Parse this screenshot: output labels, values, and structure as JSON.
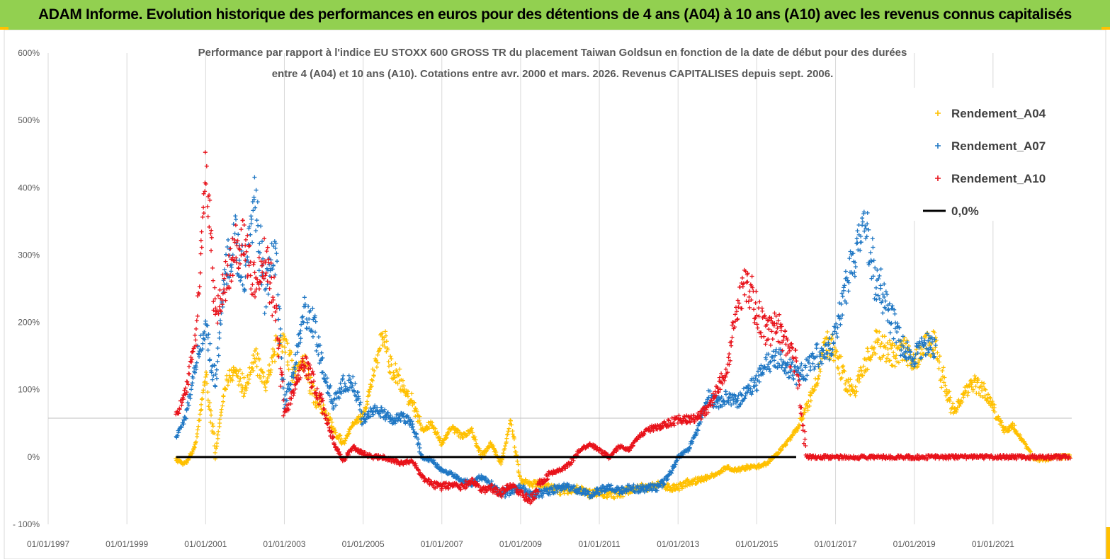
{
  "banner": {
    "title": "ADAM Informe. Evolution historique des performances en euros pour des détentions de 4 ans (A04) à 10 ans (A10) avec les revenus connus capitalisés",
    "background": "#92D050"
  },
  "chart_data": {
    "type": "scatter",
    "title_line1": "Performance par rapport à l'indice EU STOXX 600 GROSS TR  du placement Taiwan Goldsun  en fonction de la date de début pour des durées",
    "title_line2": "entre 4 (A04) et 10 ans (A10). Cotations entre avr. 2000 et mars. 2026. Revenus CAPITALISES depuis sept. 2006.",
    "xlabel": "",
    "ylabel": "",
    "xlim": [
      "1997-01-01",
      "2023-01-01"
    ],
    "ylim": [
      -100,
      600
    ],
    "y_ticks": [
      "- 100%",
      "0%",
      "100%",
      "200%",
      "300%",
      "400%",
      "500%",
      "600%"
    ],
    "x_ticks": [
      "01/01/1997",
      "01/01/1999",
      "01/01/2001",
      "01/01/2003",
      "01/01/2005",
      "01/01/2007",
      "01/01/2009",
      "01/01/2011",
      "01/01/2013",
      "01/01/2015",
      "01/01/2017",
      "01/01/2019",
      "01/01/2021"
    ],
    "grid": "vertical",
    "legend_position": "top-right",
    "series": [
      {
        "name": "Rendement_A04",
        "color": "#FFC000",
        "marker": "plus",
        "points": [
          [
            "2000-04",
            -5
          ],
          [
            "2000-07",
            -10
          ],
          [
            "2000-10",
            20
          ],
          [
            "2001-01",
            120
          ],
          [
            "2001-04",
            5
          ],
          [
            "2001-07",
            110
          ],
          [
            "2001-10",
            130
          ],
          [
            "2002-01",
            100
          ],
          [
            "2002-04",
            150
          ],
          [
            "2002-07",
            100
          ],
          [
            "2002-10",
            160
          ],
          [
            "2003-01",
            170
          ],
          [
            "2003-04",
            120
          ],
          [
            "2003-07",
            140
          ],
          [
            "2003-10",
            90
          ],
          [
            "2004-01",
            70
          ],
          [
            "2004-04",
            40
          ],
          [
            "2004-07",
            20
          ],
          [
            "2004-10",
            50
          ],
          [
            "2005-01",
            60
          ],
          [
            "2005-04",
            120
          ],
          [
            "2005-07",
            180
          ],
          [
            "2005-10",
            130
          ],
          [
            "2006-01",
            110
          ],
          [
            "2006-04",
            80
          ],
          [
            "2006-07",
            40
          ],
          [
            "2006-10",
            50
          ],
          [
            "2007-01",
            20
          ],
          [
            "2007-04",
            45
          ],
          [
            "2007-07",
            30
          ],
          [
            "2007-10",
            40
          ],
          [
            "2008-01",
            0
          ],
          [
            "2008-04",
            20
          ],
          [
            "2008-07",
            -10
          ],
          [
            "2008-10",
            55
          ],
          [
            "2009-01",
            -35
          ],
          [
            "2009-04",
            -40
          ],
          [
            "2009-07",
            -40
          ],
          [
            "2009-10",
            -45
          ],
          [
            "2010-01",
            -50
          ],
          [
            "2010-04",
            -48
          ],
          [
            "2010-07",
            -48
          ],
          [
            "2010-10",
            -55
          ],
          [
            "2011-01",
            -52
          ],
          [
            "2011-04",
            -55
          ],
          [
            "2011-07",
            -55
          ],
          [
            "2011-10",
            -50
          ],
          [
            "2012-01",
            -45
          ],
          [
            "2012-04",
            -45
          ],
          [
            "2012-07",
            -40
          ],
          [
            "2012-10",
            -45
          ],
          [
            "2013-01",
            -45
          ],
          [
            "2013-04",
            -38
          ],
          [
            "2013-07",
            -35
          ],
          [
            "2013-10",
            -30
          ],
          [
            "2014-01",
            -25
          ],
          [
            "2014-04",
            -15
          ],
          [
            "2014-07",
            -20
          ],
          [
            "2014-10",
            -15
          ],
          [
            "2015-01",
            -15
          ],
          [
            "2015-04",
            -10
          ],
          [
            "2015-07",
            5
          ],
          [
            "2015-10",
            20
          ],
          [
            "2016-01",
            40
          ],
          [
            "2016-04",
            70
          ],
          [
            "2016-07",
            110
          ],
          [
            "2016-10",
            170
          ],
          [
            "2017-01",
            160
          ],
          [
            "2017-04",
            110
          ],
          [
            "2017-07",
            100
          ],
          [
            "2017-10",
            140
          ],
          [
            "2018-01",
            170
          ],
          [
            "2018-04",
            160
          ],
          [
            "2018-07",
            150
          ],
          [
            "2018-10",
            160
          ],
          [
            "2019-01",
            140
          ],
          [
            "2019-04",
            165
          ],
          [
            "2019-07",
            170
          ],
          [
            "2019-10",
            110
          ],
          [
            "2020-01",
            65
          ],
          [
            "2020-04",
            90
          ],
          [
            "2020-07",
            110
          ],
          [
            "2020-10",
            100
          ],
          [
            "2021-01",
            75
          ],
          [
            "2021-04",
            40
          ],
          [
            "2021-07",
            45
          ],
          [
            "2021-10",
            25
          ],
          [
            "2022-01",
            0
          ],
          [
            "2022-04",
            -5
          ],
          [
            "2022-07",
            0
          ],
          [
            "2022-10",
            0
          ],
          [
            "2022-12",
            0
          ]
        ]
      },
      {
        "name": "Rendement_A07",
        "color": "#1F77C4",
        "marker": "plus",
        "points": [
          [
            "2000-04",
            30
          ],
          [
            "2000-07",
            60
          ],
          [
            "2000-10",
            140
          ],
          [
            "2001-01",
            190
          ],
          [
            "2001-04",
            110
          ],
          [
            "2001-07",
            280
          ],
          [
            "2001-10",
            320
          ],
          [
            "2002-01",
            260
          ],
          [
            "2002-04",
            380
          ],
          [
            "2002-07",
            240
          ],
          [
            "2002-10",
            320
          ],
          [
            "2003-01",
            80
          ],
          [
            "2003-04",
            130
          ],
          [
            "2003-07",
            220
          ],
          [
            "2003-10",
            200
          ],
          [
            "2004-01",
            130
          ],
          [
            "2004-04",
            80
          ],
          [
            "2004-07",
            110
          ],
          [
            "2004-10",
            110
          ],
          [
            "2005-01",
            55
          ],
          [
            "2005-04",
            70
          ],
          [
            "2005-07",
            65
          ],
          [
            "2005-10",
            55
          ],
          [
            "2006-01",
            60
          ],
          [
            "2006-04",
            50
          ],
          [
            "2006-07",
            0
          ],
          [
            "2006-10",
            -5
          ],
          [
            "2007-01",
            -20
          ],
          [
            "2007-04",
            -25
          ],
          [
            "2007-07",
            -35
          ],
          [
            "2007-10",
            -40
          ],
          [
            "2008-01",
            -30
          ],
          [
            "2008-04",
            -40
          ],
          [
            "2008-07",
            -55
          ],
          [
            "2008-10",
            -50
          ],
          [
            "2009-01",
            -45
          ],
          [
            "2009-04",
            -55
          ],
          [
            "2009-07",
            -55
          ],
          [
            "2009-10",
            -50
          ],
          [
            "2010-01",
            -45
          ],
          [
            "2010-04",
            -45
          ],
          [
            "2010-07",
            -50
          ],
          [
            "2010-10",
            -55
          ],
          [
            "2011-01",
            -50
          ],
          [
            "2011-04",
            -45
          ],
          [
            "2011-07",
            -50
          ],
          [
            "2011-10",
            -45
          ],
          [
            "2012-01",
            -48
          ],
          [
            "2012-04",
            -45
          ],
          [
            "2012-07",
            -45
          ],
          [
            "2012-10",
            -30
          ],
          [
            "2013-01",
            0
          ],
          [
            "2013-04",
            10
          ],
          [
            "2013-07",
            40
          ],
          [
            "2013-10",
            90
          ],
          [
            "2014-01",
            80
          ],
          [
            "2014-04",
            90
          ],
          [
            "2014-07",
            80
          ],
          [
            "2014-10",
            100
          ],
          [
            "2015-01",
            110
          ],
          [
            "2015-04",
            140
          ],
          [
            "2015-07",
            150
          ],
          [
            "2015-10",
            140
          ],
          [
            "2016-01",
            120
          ],
          [
            "2016-04",
            130
          ],
          [
            "2016-07",
            150
          ],
          [
            "2016-10",
            150
          ],
          [
            "2017-01",
            180
          ],
          [
            "2017-04",
            250
          ],
          [
            "2017-07",
            300
          ],
          [
            "2017-10",
            350
          ],
          [
            "2018-01",
            270
          ],
          [
            "2018-04",
            240
          ],
          [
            "2018-07",
            190
          ],
          [
            "2018-10",
            160
          ],
          [
            "2019-01",
            150
          ],
          [
            "2019-04",
            170
          ],
          [
            "2019-07",
            160
          ]
        ]
      },
      {
        "name": "Rendement_A10",
        "color": "#E8121A",
        "marker": "plus",
        "points": [
          [
            "2000-04",
            60
          ],
          [
            "2000-07",
            100
          ],
          [
            "2000-10",
            180
          ],
          [
            "2001-01",
            420
          ],
          [
            "2001-04",
            210
          ],
          [
            "2001-07",
            260
          ],
          [
            "2001-10",
            310
          ],
          [
            "2002-01",
            320
          ],
          [
            "2002-04",
            250
          ],
          [
            "2002-07",
            300
          ],
          [
            "2002-10",
            230
          ],
          [
            "2003-01",
            60
          ],
          [
            "2003-04",
            100
          ],
          [
            "2003-07",
            140
          ],
          [
            "2003-10",
            110
          ],
          [
            "2004-01",
            70
          ],
          [
            "2004-04",
            20
          ],
          [
            "2004-07",
            -5
          ],
          [
            "2004-10",
            15
          ],
          [
            "2005-01",
            5
          ],
          [
            "2005-04",
            0
          ],
          [
            "2005-07",
            0
          ],
          [
            "2005-10",
            -5
          ],
          [
            "2006-01",
            -10
          ],
          [
            "2006-04",
            -5
          ],
          [
            "2006-07",
            -30
          ],
          [
            "2006-10",
            -40
          ],
          [
            "2007-01",
            -45
          ],
          [
            "2007-04",
            -40
          ],
          [
            "2007-07",
            -45
          ],
          [
            "2007-10",
            -35
          ],
          [
            "2008-01",
            -50
          ],
          [
            "2008-04",
            -45
          ],
          [
            "2008-07",
            -55
          ],
          [
            "2008-10",
            -40
          ],
          [
            "2009-01",
            -55
          ],
          [
            "2009-04",
            -65
          ],
          [
            "2009-07",
            -40
          ],
          [
            "2009-10",
            -25
          ],
          [
            "2010-01",
            -20
          ],
          [
            "2010-04",
            -10
          ],
          [
            "2010-07",
            10
          ],
          [
            "2010-10",
            20
          ],
          [
            "2011-01",
            10
          ],
          [
            "2011-04",
            0
          ],
          [
            "2011-07",
            15
          ],
          [
            "2011-10",
            10
          ],
          [
            "2012-01",
            30
          ],
          [
            "2012-04",
            40
          ],
          [
            "2012-07",
            45
          ],
          [
            "2012-10",
            50
          ],
          [
            "2013-01",
            55
          ],
          [
            "2013-04",
            55
          ],
          [
            "2013-07",
            60
          ],
          [
            "2013-10",
            70
          ],
          [
            "2014-01",
            100
          ],
          [
            "2014-04",
            130
          ],
          [
            "2014-07",
            230
          ],
          [
            "2014-10",
            260
          ],
          [
            "2015-01",
            220
          ],
          [
            "2015-04",
            180
          ],
          [
            "2015-07",
            200
          ],
          [
            "2015-10",
            160
          ],
          [
            "2016-01",
            140
          ],
          [
            "2016-04",
            0
          ],
          [
            "2016-07",
            0
          ],
          [
            "2016-10",
            0
          ],
          [
            "2017-01",
            0
          ],
          [
            "2017-07",
            0
          ],
          [
            "2018-01",
            0
          ],
          [
            "2018-07",
            0
          ],
          [
            "2019-01",
            0
          ],
          [
            "2019-07",
            0
          ],
          [
            "2020-01",
            0
          ],
          [
            "2020-07",
            0
          ],
          [
            "2021-01",
            0
          ],
          [
            "2021-07",
            0
          ],
          [
            "2022-01",
            0
          ],
          [
            "2022-07",
            0
          ],
          [
            "2022-12",
            0
          ]
        ]
      },
      {
        "name": "0,0%",
        "color": "#000000",
        "marker": "line",
        "points": [
          [
            "2000-04",
            0
          ],
          [
            "2016-01",
            0
          ]
        ]
      }
    ]
  }
}
